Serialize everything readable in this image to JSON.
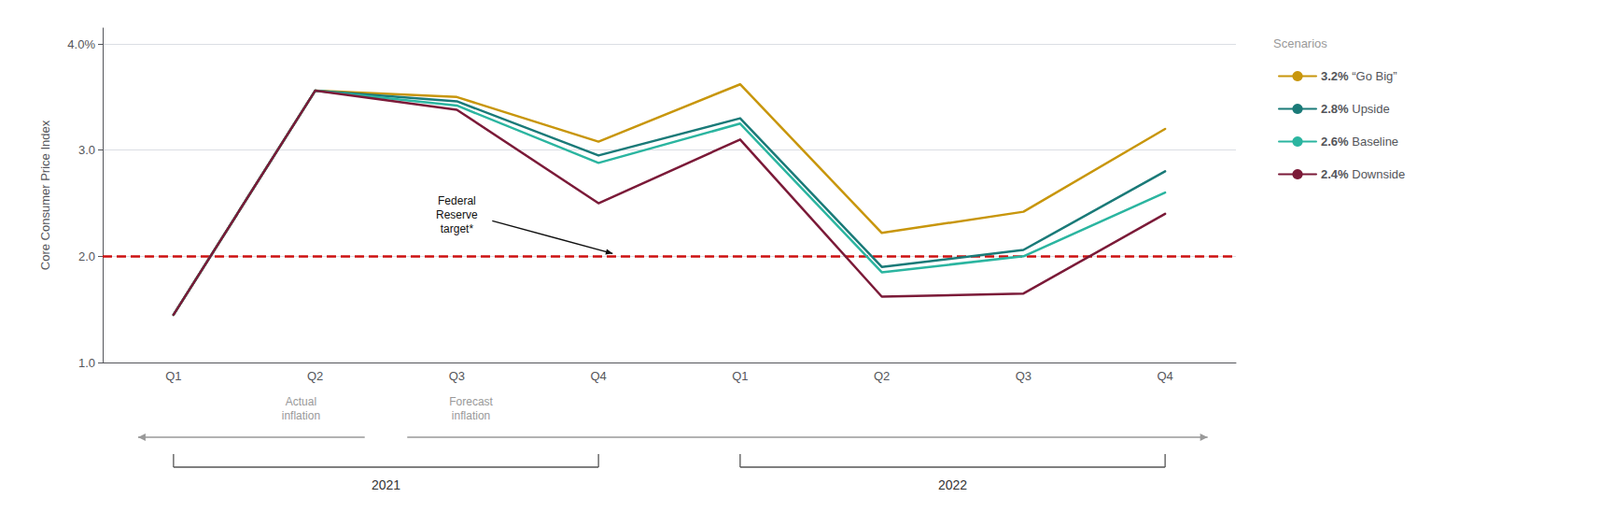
{
  "chart_data": {
    "type": "line",
    "ylabel": "Core Consumer Price Index",
    "categories": [
      "Q1",
      "Q2",
      "Q3",
      "Q4",
      "Q1",
      "Q2",
      "Q3",
      "Q4"
    ],
    "series": [
      {
        "name": "3.2% “Go Big”",
        "color": "#C8960C",
        "values": [
          1.45,
          3.56,
          3.5,
          3.08,
          3.62,
          2.22,
          2.42,
          3.2
        ]
      },
      {
        "name": "2.8% Upside",
        "color": "#1A7A78",
        "values": [
          1.45,
          3.56,
          3.46,
          2.95,
          3.3,
          1.9,
          2.06,
          2.8
        ]
      },
      {
        "name": "2.6% Baseline",
        "color": "#2BB5A0",
        "values": [
          1.45,
          3.56,
          3.42,
          2.88,
          3.25,
          1.85,
          2.0,
          2.6
        ]
      },
      {
        "name": "2.4% Downside",
        "color": "#7B1A38",
        "values": [
          1.45,
          3.56,
          3.38,
          2.5,
          3.1,
          1.62,
          1.65,
          2.4
        ]
      }
    ],
    "ylim": [
      1.0,
      4.15
    ],
    "yticks": [
      {
        "value": 1.0,
        "label": "1.0"
      },
      {
        "value": 2.0,
        "label": "2.0"
      },
      {
        "value": 3.0,
        "label": "3.0"
      },
      {
        "value": 4.0,
        "label": "4.0%"
      }
    ],
    "grid": true,
    "legend": "right",
    "legend_title": "Scenarios",
    "reference_line": {
      "value": 2.0,
      "color": "#CC1111",
      "line_style": "dashed",
      "label": "Federal\nReserve\ntarget*"
    },
    "periods": [
      {
        "label": "Actual\ninflation",
        "count": 2
      },
      {
        "label": "Forecast\ninflation",
        "count": 6
      }
    ],
    "category_groups": [
      {
        "label": "2021",
        "count": 4
      },
      {
        "label": "2022",
        "count": 4
      }
    ]
  }
}
